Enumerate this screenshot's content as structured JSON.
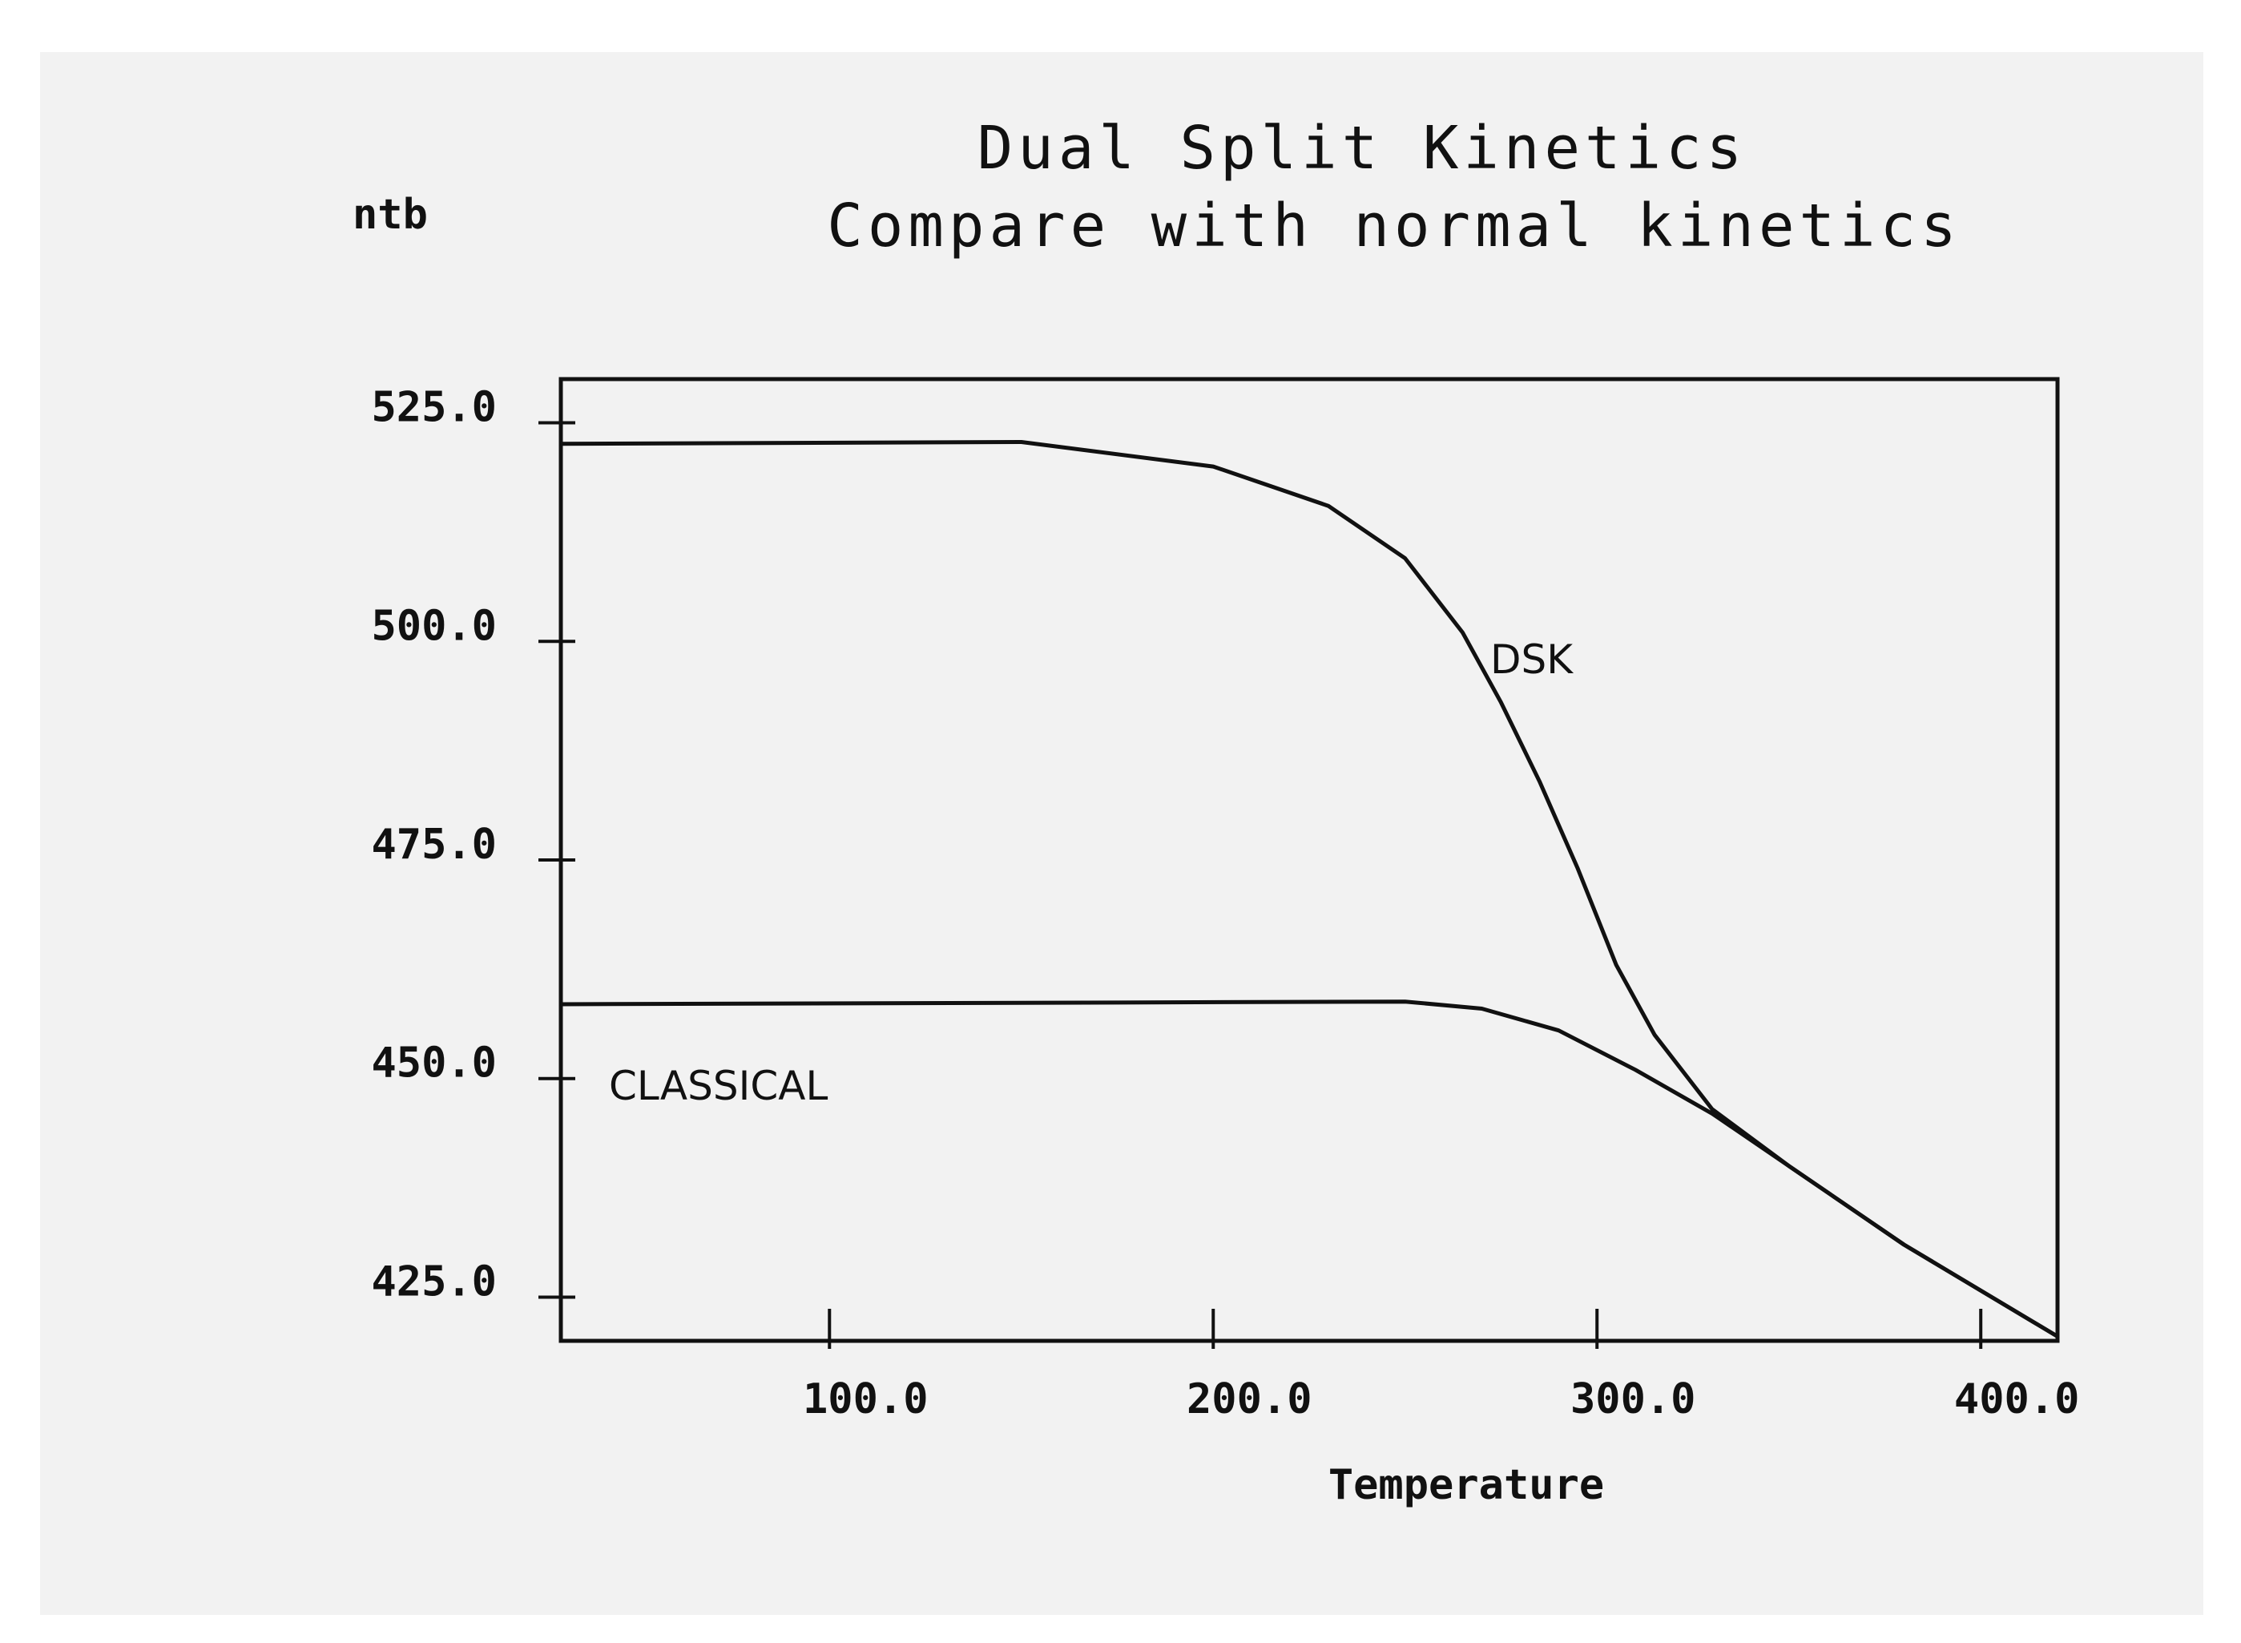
{
  "chart_data": {
    "type": "line",
    "title": "Dual Split Kinetics",
    "subtitle": "Compare with normal kinetics",
    "xlabel": "Temperature",
    "ylabel": "ntb",
    "xlim": [
      30,
      420
    ],
    "ylim": [
      420,
      530
    ],
    "x_ticks": [
      100.0,
      200.0,
      300.0,
      400.0
    ],
    "x_tick_labels": [
      "100.0",
      "200.0",
      "300.0",
      "400.0"
    ],
    "y_ticks": [
      425.0,
      450.0,
      475.0,
      500.0,
      525.0
    ],
    "y_tick_labels": [
      "425.0",
      "450.0",
      "475.0",
      "500.0",
      "525.0"
    ],
    "grid": false,
    "series": [
      {
        "name": "DSK",
        "color": "#111111",
        "points": [
          [
            30,
            522.6
          ],
          [
            150,
            522.8
          ],
          [
            200,
            520
          ],
          [
            230,
            515.5
          ],
          [
            250,
            509.5
          ],
          [
            265,
            501
          ],
          [
            275,
            493
          ],
          [
            285,
            484
          ],
          [
            295,
            474
          ],
          [
            305,
            463
          ],
          [
            315,
            455
          ],
          [
            330,
            446.5
          ],
          [
            350,
            440
          ],
          [
            380,
            431
          ],
          [
            420,
            420.5
          ]
        ]
      },
      {
        "name": "CLASSICAL",
        "color": "#111111",
        "points": [
          [
            30,
            458.5
          ],
          [
            250,
            458.8
          ],
          [
            270,
            458
          ],
          [
            290,
            455.5
          ],
          [
            310,
            451
          ],
          [
            330,
            446
          ],
          [
            350,
            440
          ],
          [
            380,
            431
          ],
          [
            420,
            420.5
          ]
        ]
      }
    ]
  }
}
